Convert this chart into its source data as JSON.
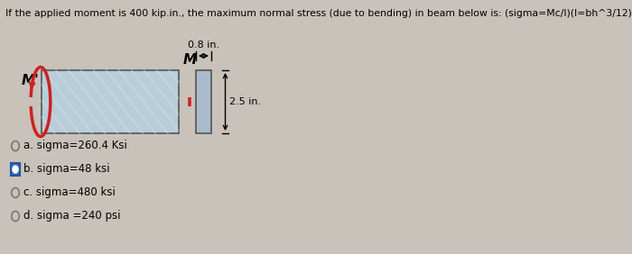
{
  "title": "If the applied moment is 400 kip.in., the maximum normal stress (due to bending) in beam below is: (sigma=Mc/I)(I=bh^3/12)",
  "dim_label_top": "0.8 in.",
  "dim_label_right": "2.5 in.",
  "moment_label_left": "M'",
  "moment_label_mid": "M",
  "beam_color_light": "#b8cdd8",
  "beam_color_dark": "#8aaabb",
  "cross_color": "#aabbcc",
  "options": [
    {
      "label": "a. sigma=260.4 Ksi",
      "selected": false
    },
    {
      "label": "b. sigma=48 ksi",
      "selected": true
    },
    {
      "label": "c. sigma=480 ksi",
      "selected": false
    },
    {
      "label": "d. sigma =240 psi",
      "selected": false
    }
  ],
  "bg_color": "#c8c2ba",
  "title_fontsize": 7.8,
  "option_fontsize": 8.5,
  "radio_color_selected_face": "#3a6ea5",
  "radio_color_selected_edge": "#2255aa",
  "arc_color_left": "#cc2222",
  "arc_color_right": "#cc2222"
}
